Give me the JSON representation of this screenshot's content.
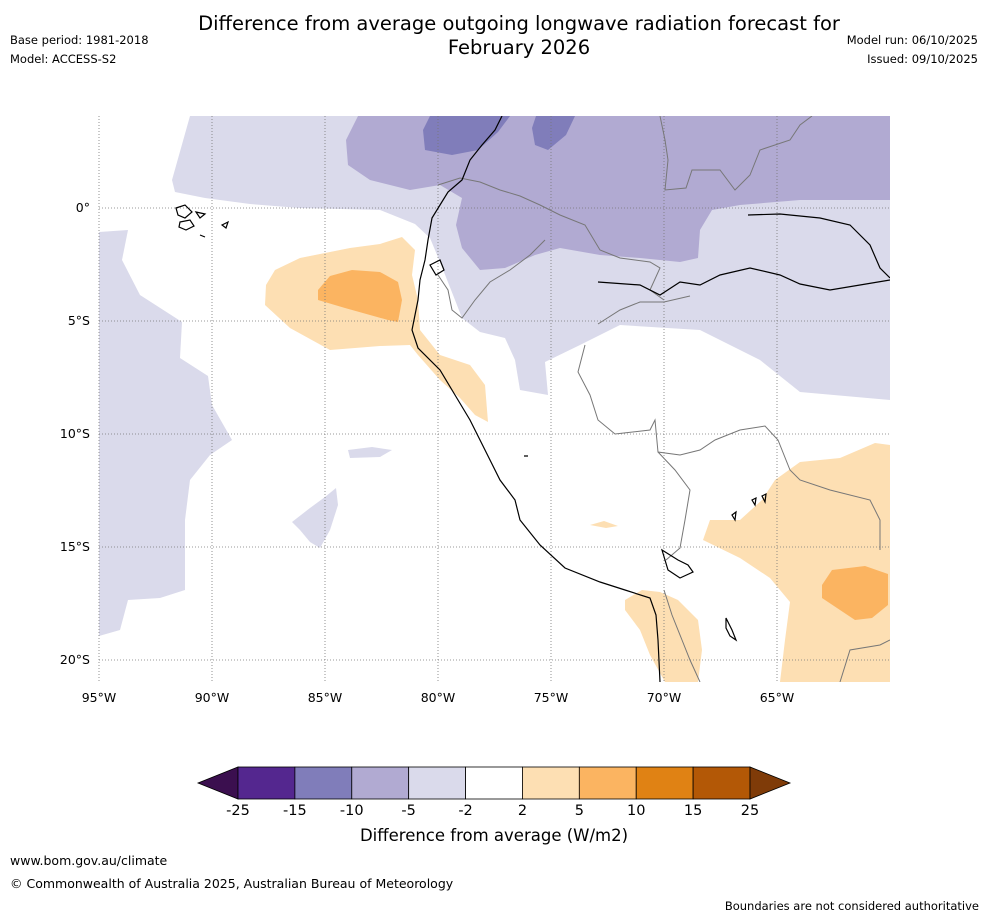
{
  "header": {
    "title_line1": "Difference from average outgoing longwave radiation forecast for",
    "title_line2": "February 2026",
    "base_period": "Base period: 1981-2018",
    "model": "Model: ACCESS-S2",
    "model_run": "Model run: 06/10/2025",
    "issued": "Issued: 09/10/2025"
  },
  "map": {
    "lat_labels": [
      "0°",
      "5°S",
      "10°S",
      "15°S",
      "20°S"
    ],
    "lon_labels": [
      "95°W",
      "90°W",
      "85°W",
      "80°W",
      "75°W",
      "70°W",
      "65°W"
    ]
  },
  "colorbar": {
    "ticks": [
      "-25",
      "-15",
      "-10",
      "-5",
      "-2",
      "2",
      "5",
      "10",
      "15",
      "25"
    ],
    "colors": [
      "#3b0f4f",
      "#54278f",
      "#807dba",
      "#b1aad2",
      "#dadaeb",
      "#ffffff",
      "#fddfb3",
      "#fbb461",
      "#e08214",
      "#b35806",
      "#7f3b08"
    ],
    "label": "Difference from average (W/m2)"
  },
  "footer": {
    "url": "www.bom.gov.au/climate",
    "copyright": "© Commonwealth of Australia 2025, Australian Bureau of Meteorology",
    "note": "Boundaries are not considered authoritative"
  }
}
